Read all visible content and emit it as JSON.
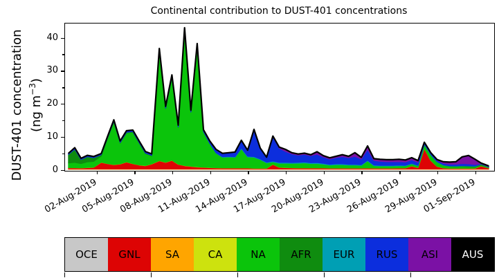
{
  "title": "Continental contribution to DUST-401 concentrations",
  "y_axis": {
    "label_line1": "DUST-401 concentration",
    "label_line2_pre": "(ng m",
    "label_line2_sup": "−3",
    "label_line2_post": ")",
    "ticks": [
      0,
      10,
      20,
      30,
      40
    ],
    "minor_ticks": [
      5,
      15,
      25,
      35
    ]
  },
  "x_axis": {
    "tick_labels": [
      "02-Aug-2019",
      "05-Aug-2019",
      "08-Aug-2019",
      "11-Aug-2019",
      "14-Aug-2019",
      "17-Aug-2019",
      "20-Aug-2019",
      "23-Aug-2019",
      "26-Aug-2019",
      "29-Aug-2019",
      "01-Sep-2019"
    ],
    "tick_days": [
      1,
      4,
      7,
      10,
      13,
      16,
      19,
      22,
      25,
      28,
      31
    ]
  },
  "legend": {
    "items": [
      {
        "label": "OCE",
        "color": "#c8c8c8",
        "text_color": "#000000"
      },
      {
        "label": "GNL",
        "color": "#dd0404",
        "text_color": "#000000"
      },
      {
        "label": "SA",
        "color": "#ffa500",
        "text_color": "#000000"
      },
      {
        "label": "CA",
        "color": "#cde20e",
        "text_color": "#000000"
      },
      {
        "label": "NA",
        "color": "#0bc40b",
        "text_color": "#000000"
      },
      {
        "label": "AFR",
        "color": "#0f8c0f",
        "text_color": "#000000"
      },
      {
        "label": "EUR",
        "color": "#009fb4",
        "text_color": "#000000"
      },
      {
        "label": "RUS",
        "color": "#0c2edd",
        "text_color": "#000000"
      },
      {
        "label": "ASI",
        "color": "#7b11a5",
        "text_color": "#000000"
      },
      {
        "label": "AUS",
        "color": "#000000",
        "text_color": "#ffffff"
      }
    ],
    "tick_positions": [
      0,
      125,
      250,
      375,
      500
    ]
  },
  "chart_data": {
    "type": "area",
    "stacked": true,
    "title": "Continental contribution to DUST-401 concentrations",
    "ylabel": "DUST-401 concentration (ng m^-3)",
    "ylim": [
      0,
      44.2
    ],
    "grid": false,
    "x_unit": "days, 1 = 02-Aug-2019",
    "x": [
      -1.2,
      -0.7,
      -0.2,
      0.3,
      0.8,
      1.4,
      1.9,
      2.4,
      2.9,
      3.4,
      3.9,
      4.4,
      4.9,
      5.4,
      6.0,
      6.5,
      7.0,
      7.5,
      8.0,
      8.5,
      9.0,
      9.5,
      10.0,
      10.5,
      11.0,
      11.5,
      12.0,
      12.5,
      13.0,
      13.5,
      14.0,
      14.5,
      15.0,
      15.5,
      16.0,
      16.5,
      17.0,
      17.5,
      18.0,
      18.5,
      19.0,
      19.5,
      20.0,
      20.5,
      21.0,
      21.5,
      22.0,
      22.5,
      23.0,
      23.5,
      24.0,
      24.5,
      25.0,
      25.5,
      26.0,
      26.5,
      27.0,
      27.5,
      28.0,
      28.5,
      29.0,
      29.5,
      30.0,
      30.5,
      31.0,
      31.5,
      32.1
    ],
    "series": [
      {
        "name": "OCE",
        "color": "#c8c8c8",
        "constant": 0.04
      },
      {
        "name": "SA",
        "color": "#ffa500",
        "constant": 0.1
      },
      {
        "name": "GNL",
        "color": "#dd0404",
        "values": [
          0.35,
          0.35,
          0.3,
          0.4,
          0.5,
          2.0,
          1.6,
          1.3,
          1.5,
          2.1,
          1.6,
          1.2,
          1.0,
          1.5,
          2.5,
          2.0,
          2.6,
          1.4,
          1.0,
          0.8,
          0.6,
          0.5,
          0.4,
          0.35,
          0.3,
          0.3,
          0.3,
          0.3,
          0.3,
          0.2,
          0.2,
          0.2,
          1.4,
          0.5,
          0.4,
          0.35,
          0.3,
          0.3,
          0.3,
          0.3,
          0.3,
          0.25,
          0.25,
          0.25,
          0.25,
          0.25,
          0.25,
          0.3,
          0.25,
          0.25,
          0.25,
          0.25,
          0.3,
          0.3,
          0.9,
          0.4,
          6.2,
          2.6,
          0.8,
          0.3,
          0.2,
          0.2,
          0.2,
          0.2,
          0.2,
          0.9,
          0.3
        ]
      },
      {
        "name": "CA",
        "color": "#cde20e",
        "constant": 0.05
      },
      {
        "name": "NA",
        "color": "#0bc40b",
        "values": [
          1.4,
          1.6,
          1.3,
          1.7,
          1.75,
          1.9,
          7.6,
          12.9,
          6.3,
          8.8,
          9.5,
          6.6,
          3.6,
          2.4,
          33.3,
          16.3,
          25.2,
          11.2,
          41.2,
          16.4,
          36.8,
          10.8,
          7.3,
          4.4,
          3.2,
          3.3,
          3.2,
          5.8,
          3.3,
          3.3,
          2.6,
          1.6,
          0.7,
          1.2,
          1.3,
          1.3,
          1.4,
          1.5,
          1.3,
          1.3,
          1.1,
          0.9,
          1.0,
          1.0,
          0.9,
          0.9,
          0.8,
          2.1,
          0.7,
          0.6,
          0.6,
          0.6,
          0.6,
          0.6,
          0.6,
          0.5,
          1.2,
          1.7,
          1.3,
          0.8,
          0.5,
          0.4,
          0.4,
          0.35,
          0.3,
          0.2,
          0.15
        ]
      },
      {
        "name": "AFR",
        "color": "#0f8c0f",
        "values": [
          2.6,
          4.0,
          1.2,
          1.6,
          1.1,
          0.4,
          0.25,
          0.2,
          0.2,
          0.2,
          0.2,
          0.2,
          0.2,
          0.2,
          0.1,
          0.1,
          0.1,
          0.1,
          0,
          0,
          0,
          0,
          0,
          0,
          0,
          0,
          0,
          0,
          0,
          0,
          0,
          0,
          0,
          0,
          0,
          0,
          0,
          0,
          0,
          0,
          0,
          0,
          0,
          0,
          0,
          0,
          0,
          0,
          0,
          0,
          0,
          0,
          0,
          0,
          0,
          0,
          0,
          0,
          0,
          0,
          0.15,
          0.2,
          0.3,
          0.3,
          0.25,
          0.3,
          0.1
        ]
      },
      {
        "name": "EUR",
        "color": "#009fb4",
        "values": [
          0,
          0,
          0,
          0,
          0,
          0,
          0,
          0,
          0,
          0,
          0,
          0,
          0,
          0,
          0,
          0,
          0,
          0,
          0,
          0,
          0,
          0,
          0,
          0.1,
          0.15,
          0.15,
          0.15,
          0.2,
          0.2,
          0.2,
          0.2,
          0.2,
          0.25,
          0.25,
          0.25,
          0.25,
          0.25,
          0.25,
          0.25,
          0.3,
          0.25,
          0.2,
          0.25,
          0.25,
          0.2,
          0.2,
          0.2,
          0.2,
          0.2,
          0.2,
          0.2,
          0.2,
          0.2,
          0.15,
          0.15,
          0.15,
          0.1,
          0.1,
          0.1,
          0.1,
          0.1,
          0.1,
          0.1,
          0.1,
          0.1,
          0.05,
          0.05
        ]
      },
      {
        "name": "RUS",
        "color": "#0c2edd",
        "values": [
          0.3,
          0.4,
          0.35,
          0.35,
          0.35,
          0.3,
          0.35,
          0.4,
          0.4,
          0.4,
          0.4,
          0.4,
          0.4,
          0.4,
          0.5,
          0.5,
          0.5,
          0.5,
          0.5,
          0.5,
          0.5,
          0.5,
          0.7,
          1.0,
          1.0,
          1.1,
          1.4,
          2.3,
          1.8,
          8.2,
          3.2,
          1.5,
          7.4,
          4.3,
          3.3,
          2.6,
          2.2,
          2.3,
          2.1,
          2.5,
          1.9,
          1.6,
          1.9,
          2.2,
          2.0,
          2.4,
          1.7,
          3.3,
          1.4,
          1.2,
          1.1,
          1.1,
          1.1,
          1.0,
          1.1,
          0.9,
          0.4,
          0.4,
          0.4,
          0.45,
          0.45,
          0.5,
          0.6,
          0.55,
          0.45,
          0.1,
          0.1
        ]
      },
      {
        "name": "ASI",
        "color": "#7b11a5",
        "values": [
          0,
          0,
          0,
          0,
          0,
          0,
          0,
          0,
          0,
          0,
          0,
          0,
          0,
          0,
          0,
          0,
          0,
          0,
          0,
          0,
          0,
          0,
          0,
          0,
          0,
          0,
          0,
          0,
          0,
          0,
          0,
          0,
          0.15,
          0.3,
          0.6,
          0.35,
          0.3,
          0.35,
          0.3,
          0.75,
          0.4,
          0.35,
          0.35,
          0.55,
          0.4,
          1.1,
          0.5,
          1.0,
          0.5,
          0.6,
          0.6,
          0.6,
          0.65,
          0.6,
          0.6,
          0.5,
          0.1,
          0.1,
          0.2,
          0.45,
          0.6,
          0.7,
          2.0,
          2.5,
          1.6,
          0.15,
          0.15
        ]
      },
      {
        "name": "AUS",
        "color": "#000000",
        "constant": 0.03
      }
    ]
  },
  "layout_colors": {
    "axis": "#000000",
    "background": "#ffffff"
  }
}
